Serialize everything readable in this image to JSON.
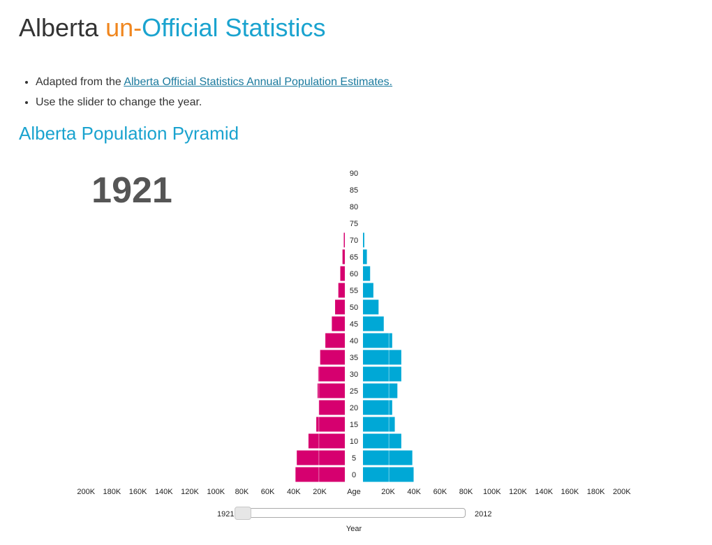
{
  "header": {
    "title_part1": "Alberta ",
    "title_part2": "un-",
    "title_part3": "Official Statistics"
  },
  "intro": {
    "item1_prefix": "Adapted from the ",
    "item1_link": "Alberta Official Statistics Annual Population Estimates.",
    "item2": "Use the slider to change the year."
  },
  "section_title": "Alberta Population Pyramid",
  "colors": {
    "female": "#d6006f",
    "male": "#00a8d6",
    "title_orange": "#f0861e",
    "title_blue": "#1aa3cf"
  },
  "chart_data": {
    "type": "bar",
    "orientation": "horizontal-pyramid",
    "year": "1921",
    "center_label": "Age",
    "xlabel": "Year",
    "xlim": [
      0,
      200000
    ],
    "x_ticks": [
      "200K",
      "180K",
      "160K",
      "140K",
      "120K",
      "100K",
      "80K",
      "60K",
      "40K",
      "20K"
    ],
    "x_ticks_right": [
      "20K",
      "40K",
      "60K",
      "80K",
      "100K",
      "120K",
      "140K",
      "160K",
      "180K",
      "200K"
    ],
    "age_groups": [
      "0",
      "5",
      "10",
      "15",
      "20",
      "25",
      "30",
      "35",
      "40",
      "45",
      "50",
      "55",
      "60",
      "65",
      "70",
      "75",
      "80",
      "85",
      "90"
    ],
    "series": [
      {
        "side": "left",
        "values": [
          38000,
          37000,
          28000,
          22000,
          20000,
          21000,
          20500,
          19000,
          15000,
          10000,
          7500,
          5000,
          3500,
          1800,
          800,
          0,
          0,
          0,
          0
        ]
      },
      {
        "side": "right",
        "values": [
          39000,
          38000,
          29500,
          24500,
          22500,
          26500,
          29500,
          29500,
          22500,
          16000,
          12000,
          8000,
          5500,
          3000,
          1000,
          0,
          0,
          0,
          0
        ]
      }
    ]
  },
  "slider": {
    "min_label": "1921",
    "max_label": "2012",
    "value": "1921"
  }
}
